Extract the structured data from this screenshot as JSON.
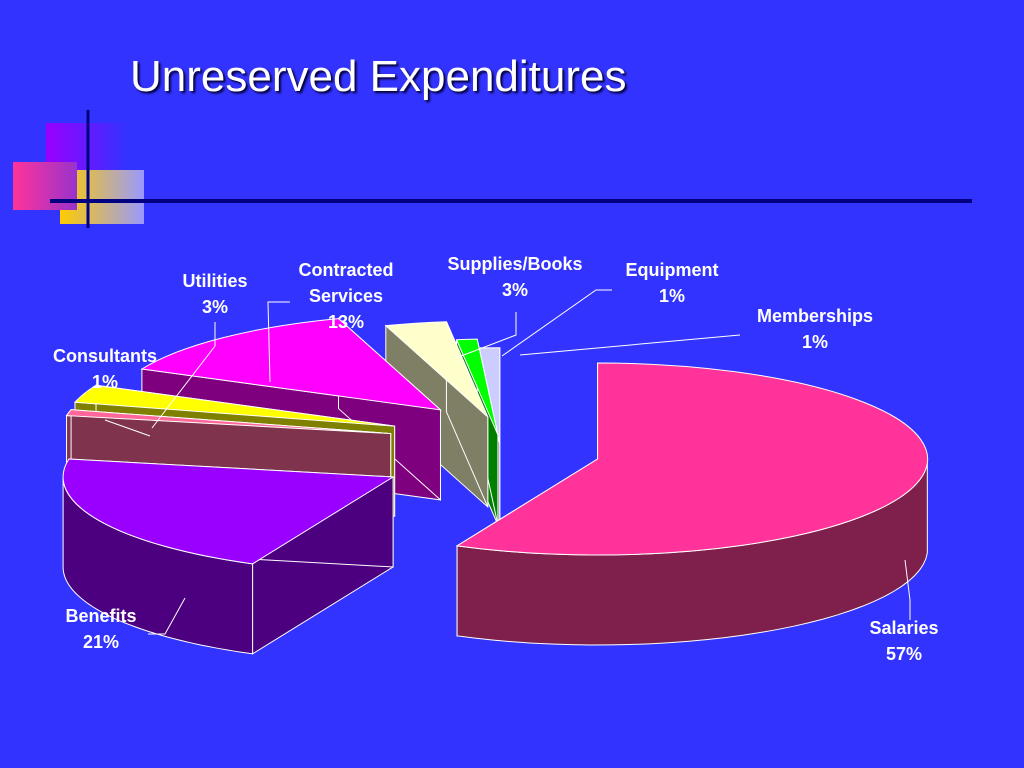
{
  "slide": {
    "title": "Unreserved Expenditures"
  },
  "colors": {
    "background": "#3333ff",
    "rule": "#000080",
    "label_text": "#ffffff"
  },
  "chart_data": {
    "type": "pie",
    "style": "3d-exploded",
    "title": "Unreserved Expenditures",
    "slices": [
      {
        "label": "Salaries",
        "percent_label": "57%",
        "value": 57,
        "top_color": "#ff3399",
        "side_color": "#7f1f4c"
      },
      {
        "label": "Benefits",
        "percent_label": "21%",
        "value": 21,
        "top_color": "#9900ff",
        "side_color": "#4c007f"
      },
      {
        "label": "Consultants",
        "percent_label": "1%",
        "value": 1,
        "top_color": "#ff6699",
        "side_color": "#7f334c"
      },
      {
        "label": "Utilities",
        "percent_label": "3%",
        "value": 3,
        "top_color": "#ffff00",
        "side_color": "#7f7f00"
      },
      {
        "label": "Contracted Services",
        "percent_label": "13%",
        "value": 13,
        "top_color": "#ff00ff",
        "side_color": "#7f007f"
      },
      {
        "label": "Supplies/Books",
        "percent_label": "3%",
        "value": 3,
        "top_color": "#ffffcc",
        "side_color": "#7f7f66"
      },
      {
        "label": "Equipment",
        "percent_label": "1%",
        "value": 1,
        "top_color": "#00ff00",
        "side_color": "#007f00"
      },
      {
        "label": "Memberships",
        "percent_label": "1%",
        "value": 1,
        "top_color": "#ccccff",
        "side_color": "#66667f"
      }
    ]
  }
}
